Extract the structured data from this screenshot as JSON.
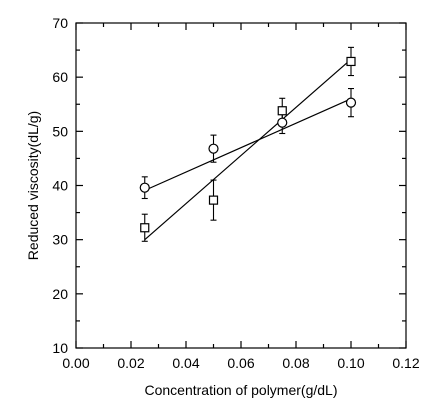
{
  "chart_data": {
    "type": "scatter",
    "xlabel": "Concentration of polymer(g/dL)",
    "ylabel": "Reduced viscosity(dL/g)",
    "xlim": [
      0.0,
      0.12
    ],
    "ylim": [
      10,
      70
    ],
    "x_ticks": [
      "0.00",
      "0.02",
      "0.04",
      "0.06",
      "0.08",
      "0.10",
      "0.12"
    ],
    "y_ticks": [
      "10",
      "20",
      "30",
      "40",
      "50",
      "60",
      "70"
    ],
    "grid": false,
    "series": [
      {
        "marker": "circle",
        "points": [
          {
            "x": 0.025,
            "y": 39.6,
            "err": 2.0
          },
          {
            "x": 0.05,
            "y": 46.8,
            "err": 2.5
          },
          {
            "x": 0.075,
            "y": 51.6,
            "err": 2.0
          },
          {
            "x": 0.1,
            "y": 55.3,
            "err": 2.6
          }
        ],
        "fit": {
          "x": [
            0.025,
            0.1
          ],
          "y": [
            39.1,
            56.0
          ]
        }
      },
      {
        "marker": "square",
        "points": [
          {
            "x": 0.025,
            "y": 32.2,
            "err": 2.5
          },
          {
            "x": 0.05,
            "y": 37.3,
            "err": 3.7
          },
          {
            "x": 0.075,
            "y": 53.8,
            "err": 2.3
          },
          {
            "x": 0.1,
            "y": 62.9,
            "err": 2.6
          }
        ],
        "fit": {
          "x": [
            0.025,
            0.1
          ],
          "y": [
            30.0,
            63.3
          ]
        }
      }
    ]
  }
}
